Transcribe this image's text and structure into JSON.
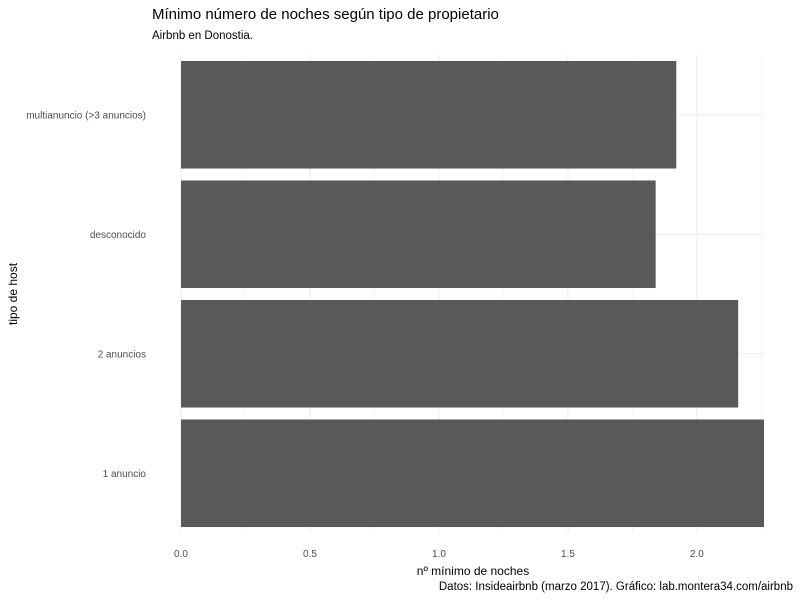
{
  "chart_data": {
    "type": "bar",
    "orientation": "horizontal",
    "title": "Mínimo número de noches según tipo de propietario",
    "subtitle": "Airbnb en Donostia.",
    "xlabel": "nº mínimo de noches",
    "ylabel": "tipo de host",
    "caption": "Datos: Insideairbnb (marzo 2017). Gráfico: lab.montera34.com/airbnb",
    "categories": [
      "multianuncio (>3 anuncios)",
      "desconocido",
      "2 anuncios",
      "1 anuncio"
    ],
    "values": [
      1.92,
      1.84,
      2.16,
      2.26
    ],
    "xlim": [
      0,
      2.26
    ],
    "x_ticks": [
      "0.0",
      "0.5",
      "1.0",
      "1.5",
      "2.0"
    ],
    "x_tick_values": [
      0,
      0.5,
      1.0,
      1.5,
      2.0
    ],
    "bar_color": "#595959",
    "grid": true
  }
}
